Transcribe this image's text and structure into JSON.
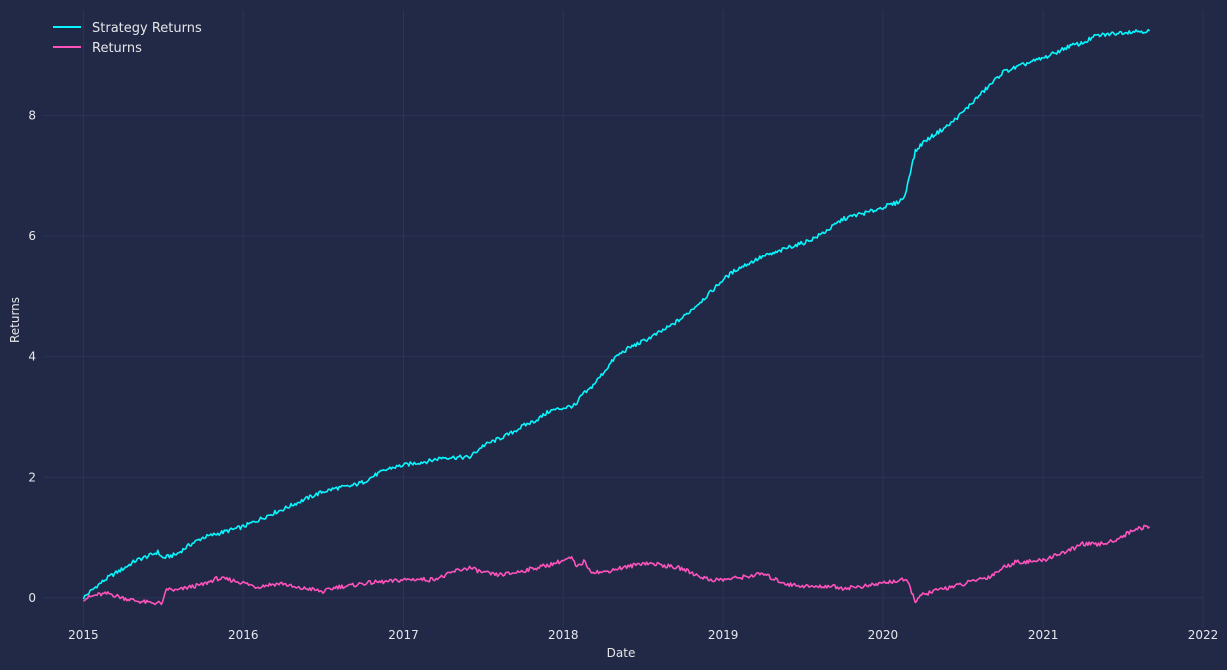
{
  "chart_data": {
    "type": "line",
    "title": "",
    "xlabel": "Date",
    "ylabel": "Returns",
    "x_ticks": [
      "2015",
      "2016",
      "2017",
      "2018",
      "2019",
      "2020",
      "2021",
      "2022"
    ],
    "y_ticks": [
      "0",
      "2",
      "4",
      "6",
      "8"
    ],
    "xlim": [
      "2014-10-03",
      "2022-01-01"
    ],
    "ylim": [
      -0.5,
      9.75
    ],
    "grid": true,
    "legend_position": "top-left",
    "background_color": "#212946",
    "grid_color": "#2a3459",
    "text_color": "#e6e6ea",
    "series": [
      {
        "name": "Strategy Returns",
        "color": "#08F7FE",
        "points": [
          [
            "2015-01-01",
            0.0
          ],
          [
            "2015-01-10",
            0.06
          ],
          [
            "2015-02-01",
            0.2
          ],
          [
            "2015-03-01",
            0.35
          ],
          [
            "2015-04-01",
            0.48
          ],
          [
            "2015-05-01",
            0.62
          ],
          [
            "2015-06-01",
            0.7
          ],
          [
            "2015-06-20",
            0.76
          ],
          [
            "2015-07-01",
            0.66
          ],
          [
            "2015-08-01",
            0.72
          ],
          [
            "2015-09-01",
            0.88
          ],
          [
            "2015-10-01",
            1.0
          ],
          [
            "2015-11-01",
            1.06
          ],
          [
            "2015-12-01",
            1.12
          ],
          [
            "2016-01-01",
            1.18
          ],
          [
            "2016-02-01",
            1.28
          ],
          [
            "2016-03-01",
            1.38
          ],
          [
            "2016-04-01",
            1.47
          ],
          [
            "2016-05-01",
            1.57
          ],
          [
            "2016-06-01",
            1.67
          ],
          [
            "2016-07-01",
            1.76
          ],
          [
            "2016-08-01",
            1.82
          ],
          [
            "2016-09-01",
            1.85
          ],
          [
            "2016-10-01",
            1.92
          ],
          [
            "2016-11-01",
            2.05
          ],
          [
            "2016-12-01",
            2.15
          ],
          [
            "2017-01-01",
            2.2
          ],
          [
            "2017-02-01",
            2.24
          ],
          [
            "2017-03-01",
            2.27
          ],
          [
            "2017-04-01",
            2.33
          ],
          [
            "2017-05-01",
            2.33
          ],
          [
            "2017-06-01",
            2.33
          ],
          [
            "2017-07-01",
            2.52
          ],
          [
            "2017-08-01",
            2.62
          ],
          [
            "2017-09-01",
            2.72
          ],
          [
            "2017-10-01",
            2.85
          ],
          [
            "2017-11-01",
            2.95
          ],
          [
            "2017-12-01",
            3.1
          ],
          [
            "2018-01-01",
            3.15
          ],
          [
            "2018-02-01",
            3.2
          ],
          [
            "2018-02-10",
            3.35
          ],
          [
            "2018-03-01",
            3.45
          ],
          [
            "2018-04-01",
            3.72
          ],
          [
            "2018-05-01",
            4.0
          ],
          [
            "2018-06-01",
            4.15
          ],
          [
            "2018-07-01",
            4.25
          ],
          [
            "2018-08-01",
            4.37
          ],
          [
            "2018-09-01",
            4.5
          ],
          [
            "2018-10-01",
            4.65
          ],
          [
            "2018-11-01",
            4.85
          ],
          [
            "2018-12-01",
            5.05
          ],
          [
            "2019-01-01",
            5.28
          ],
          [
            "2019-02-01",
            5.45
          ],
          [
            "2019-03-01",
            5.55
          ],
          [
            "2019-04-01",
            5.66
          ],
          [
            "2019-05-01",
            5.72
          ],
          [
            "2019-06-01",
            5.82
          ],
          [
            "2019-07-01",
            5.88
          ],
          [
            "2019-08-01",
            5.98
          ],
          [
            "2019-09-01",
            6.12
          ],
          [
            "2019-10-01",
            6.28
          ],
          [
            "2019-11-01",
            6.35
          ],
          [
            "2019-12-01",
            6.4
          ],
          [
            "2020-01-01",
            6.48
          ],
          [
            "2020-02-01",
            6.55
          ],
          [
            "2020-02-20",
            6.65
          ],
          [
            "2020-03-01",
            7.0
          ],
          [
            "2020-03-15",
            7.4
          ],
          [
            "2020-04-01",
            7.55
          ],
          [
            "2020-05-01",
            7.7
          ],
          [
            "2020-06-01",
            7.85
          ],
          [
            "2020-07-01",
            8.05
          ],
          [
            "2020-08-01",
            8.28
          ],
          [
            "2020-09-01",
            8.5
          ],
          [
            "2020-10-01",
            8.72
          ],
          [
            "2020-11-01",
            8.8
          ],
          [
            "2020-12-01",
            8.88
          ],
          [
            "2021-01-01",
            8.95
          ],
          [
            "2021-02-01",
            9.05
          ],
          [
            "2021-03-01",
            9.15
          ],
          [
            "2021-04-01",
            9.2
          ],
          [
            "2021-05-01",
            9.32
          ],
          [
            "2021-06-01",
            9.35
          ],
          [
            "2021-07-01",
            9.38
          ],
          [
            "2021-08-01",
            9.4
          ],
          [
            "2021-09-01",
            9.4
          ]
        ]
      },
      {
        "name": "Returns",
        "color": "#FE53BB",
        "points": [
          [
            "2015-01-01",
            -0.02
          ],
          [
            "2015-02-01",
            0.05
          ],
          [
            "2015-03-01",
            0.07
          ],
          [
            "2015-04-01",
            0.0
          ],
          [
            "2015-05-01",
            -0.05
          ],
          [
            "2015-06-01",
            -0.08
          ],
          [
            "2015-07-01",
            -0.09
          ],
          [
            "2015-07-10",
            0.15
          ],
          [
            "2015-08-01",
            0.12
          ],
          [
            "2015-09-01",
            0.18
          ],
          [
            "2015-10-01",
            0.22
          ],
          [
            "2015-11-01",
            0.32
          ],
          [
            "2015-12-01",
            0.3
          ],
          [
            "2016-01-01",
            0.25
          ],
          [
            "2016-02-01",
            0.18
          ],
          [
            "2016-03-01",
            0.22
          ],
          [
            "2016-04-01",
            0.24
          ],
          [
            "2016-05-01",
            0.16
          ],
          [
            "2016-06-01",
            0.15
          ],
          [
            "2016-07-01",
            0.1
          ],
          [
            "2016-08-01",
            0.18
          ],
          [
            "2016-09-01",
            0.2
          ],
          [
            "2016-10-01",
            0.24
          ],
          [
            "2016-11-01",
            0.26
          ],
          [
            "2016-12-01",
            0.27
          ],
          [
            "2017-01-01",
            0.3
          ],
          [
            "2017-02-01",
            0.31
          ],
          [
            "2017-03-01",
            0.3
          ],
          [
            "2017-04-01",
            0.35
          ],
          [
            "2017-05-01",
            0.45
          ],
          [
            "2017-06-01",
            0.5
          ],
          [
            "2017-07-01",
            0.42
          ],
          [
            "2017-08-01",
            0.38
          ],
          [
            "2017-09-01",
            0.4
          ],
          [
            "2017-10-01",
            0.45
          ],
          [
            "2017-11-01",
            0.5
          ],
          [
            "2017-12-01",
            0.55
          ],
          [
            "2018-01-01",
            0.62
          ],
          [
            "2018-01-20",
            0.66
          ],
          [
            "2018-02-01",
            0.5
          ],
          [
            "2018-02-20",
            0.62
          ],
          [
            "2018-03-01",
            0.45
          ],
          [
            "2018-04-01",
            0.42
          ],
          [
            "2018-05-01",
            0.48
          ],
          [
            "2018-06-01",
            0.52
          ],
          [
            "2018-07-01",
            0.58
          ],
          [
            "2018-08-01",
            0.56
          ],
          [
            "2018-09-01",
            0.52
          ],
          [
            "2018-10-01",
            0.48
          ],
          [
            "2018-11-01",
            0.38
          ],
          [
            "2018-12-01",
            0.3
          ],
          [
            "2019-01-01",
            0.3
          ],
          [
            "2019-02-01",
            0.33
          ],
          [
            "2019-03-01",
            0.36
          ],
          [
            "2019-04-01",
            0.4
          ],
          [
            "2019-05-01",
            0.3
          ],
          [
            "2019-06-01",
            0.22
          ],
          [
            "2019-07-01",
            0.2
          ],
          [
            "2019-08-01",
            0.18
          ],
          [
            "2019-09-01",
            0.2
          ],
          [
            "2019-10-01",
            0.16
          ],
          [
            "2019-11-01",
            0.18
          ],
          [
            "2019-12-01",
            0.2
          ],
          [
            "2020-01-01",
            0.25
          ],
          [
            "2020-02-01",
            0.28
          ],
          [
            "2020-02-20",
            0.3
          ],
          [
            "2020-03-01",
            0.2
          ],
          [
            "2020-03-15",
            -0.05
          ],
          [
            "2020-04-01",
            0.05
          ],
          [
            "2020-05-01",
            0.12
          ],
          [
            "2020-06-01",
            0.18
          ],
          [
            "2020-07-01",
            0.22
          ],
          [
            "2020-08-01",
            0.3
          ],
          [
            "2020-09-01",
            0.35
          ],
          [
            "2020-10-01",
            0.5
          ],
          [
            "2020-11-01",
            0.6
          ],
          [
            "2020-12-01",
            0.6
          ],
          [
            "2021-01-01",
            0.62
          ],
          [
            "2021-02-01",
            0.72
          ],
          [
            "2021-03-01",
            0.78
          ],
          [
            "2021-04-01",
            0.9
          ],
          [
            "2021-05-01",
            0.88
          ],
          [
            "2021-06-01",
            0.92
          ],
          [
            "2021-07-01",
            1.02
          ],
          [
            "2021-08-01",
            1.15
          ],
          [
            "2021-09-01",
            1.18
          ]
        ]
      }
    ]
  }
}
